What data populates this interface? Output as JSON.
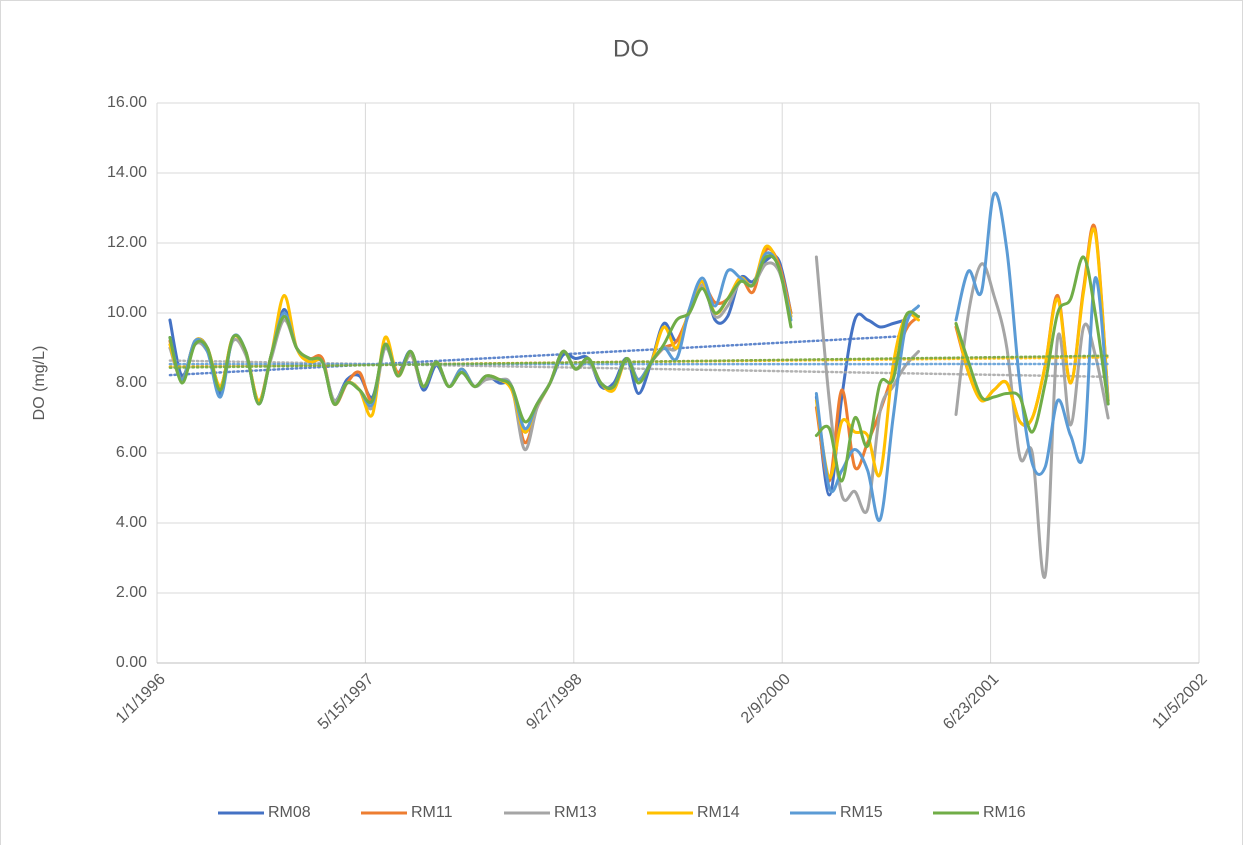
{
  "chart_data": {
    "type": "line",
    "title": "DO",
    "y_label": "DO (mg/L)",
    "x": [
      "1996-02-01",
      "1996-03-01",
      "1996-04-01",
      "1996-05-01",
      "1996-06-01",
      "1996-07-01",
      "1996-08-01",
      "1996-09-01",
      "1996-10-01",
      "1996-11-01",
      "1996-12-01",
      "1997-01-01",
      "1997-02-01",
      "1997-03-01",
      "1997-04-01",
      "1997-05-01",
      "1997-06-01",
      "1997-07-01",
      "1997-08-01",
      "1997-09-01",
      "1997-10-01",
      "1997-11-01",
      "1997-12-01",
      "1998-01-01",
      "1998-02-01",
      "1998-03-01",
      "1998-04-01",
      "1998-05-01",
      "1998-06-01",
      "1998-07-01",
      "1998-08-01",
      "1998-09-01",
      "1998-10-01",
      "1998-11-01",
      "1998-12-01",
      "1999-01-01",
      "1999-02-01",
      "1999-03-01",
      "1999-04-01",
      "1999-05-01",
      "1999-06-01",
      "1999-07-01",
      "1999-08-01",
      "1999-09-01",
      "1999-10-01",
      "1999-11-01",
      "1999-12-01",
      "2000-01-01",
      "2000-02-01",
      "2000-03-01",
      "2000-04-01",
      "2000-05-01",
      "2000-06-01",
      "2000-07-01",
      "2000-08-01",
      "2000-09-01",
      "2000-10-01",
      "2000-11-01",
      "2000-12-01",
      "2001-01-01",
      "2001-02-01",
      "2001-03-01",
      "2001-04-01",
      "2001-05-01",
      "2001-06-01",
      "2001-07-01",
      "2001-08-01",
      "2001-09-01",
      "2001-10-01",
      "2001-11-01",
      "2001-12-01",
      "2002-01-01",
      "2002-02-01",
      "2002-03-01",
      "2002-04-01"
    ],
    "series": [
      {
        "name": "RM08",
        "color": "#4472c4",
        "values": [
          9.8,
          8.2,
          9.2,
          9.0,
          7.7,
          9.3,
          8.9,
          7.4,
          8.8,
          10.1,
          9.0,
          8.7,
          8.6,
          7.5,
          8.1,
          8.2,
          7.6,
          9.0,
          8.3,
          8.9,
          7.8,
          8.5,
          7.9,
          8.3,
          7.9,
          8.2,
          8.0,
          7.9,
          6.6,
          7.4,
          8.0,
          8.8,
          8.7,
          8.7,
          7.9,
          8.0,
          8.7,
          7.7,
          8.6,
          9.7,
          9.2,
          10.0,
          10.9,
          9.8,
          9.9,
          11.0,
          10.9,
          11.5,
          11.5,
          10.0,
          null,
          7.6,
          4.8,
          7.6,
          9.8,
          9.8,
          9.6,
          9.7,
          9.8,
          null,
          null,
          null,
          null,
          null,
          null,
          null,
          null,
          null,
          null,
          null,
          null,
          null,
          null,
          null,
          null
        ]
      },
      {
        "name": "RM11",
        "color": "#ed7d31",
        "values": [
          9.2,
          8.1,
          9.1,
          9.0,
          7.9,
          9.3,
          8.9,
          7.5,
          8.8,
          9.9,
          9.0,
          8.7,
          8.7,
          7.4,
          8.0,
          8.3,
          7.5,
          9.1,
          8.3,
          8.8,
          7.9,
          8.6,
          7.9,
          8.4,
          7.9,
          8.2,
          8.1,
          7.9,
          6.3,
          7.3,
          8.0,
          8.9,
          8.4,
          8.7,
          8.0,
          7.9,
          8.7,
          8.1,
          8.6,
          9.0,
          9.2,
          10.0,
          10.8,
          10.3,
          10.4,
          11.0,
          10.6,
          11.8,
          11.4,
          10.0,
          null,
          7.3,
          5.2,
          7.8,
          5.6,
          6.3,
          7.2,
          8.3,
          9.5,
          9.9,
          null,
          null,
          9.6,
          8.3,
          7.5,
          7.8,
          8.0,
          6.9,
          7.0,
          8.5,
          10.5,
          8.0,
          10.7,
          12.4,
          7.5
        ]
      },
      {
        "name": "RM13",
        "color": "#a5a5a5",
        "values": [
          9.0,
          8.1,
          9.1,
          8.9,
          7.9,
          9.2,
          8.8,
          7.5,
          8.7,
          9.8,
          9.0,
          8.6,
          8.6,
          7.5,
          8.0,
          7.8,
          7.3,
          9.0,
          8.2,
          8.8,
          7.9,
          8.6,
          7.9,
          8.3,
          7.9,
          8.1,
          8.1,
          7.9,
          6.1,
          7.3,
          8.0,
          8.9,
          8.4,
          8.6,
          8.0,
          7.9,
          8.7,
          8.1,
          8.6,
          9.0,
          9.0,
          10.0,
          10.8,
          9.9,
          10.2,
          10.9,
          10.8,
          11.4,
          11.2,
          9.9,
          null,
          11.6,
          7.5,
          4.8,
          4.9,
          4.4,
          7.2,
          7.9,
          8.5,
          8.9,
          null,
          null,
          7.1,
          10.0,
          11.4,
          10.5,
          9.0,
          5.9,
          6.0,
          2.5,
          9.3,
          6.8,
          9.6,
          8.8,
          7.0
        ]
      },
      {
        "name": "RM14",
        "color": "#ffc000",
        "values": [
          9.1,
          8.1,
          9.2,
          9.0,
          7.9,
          9.3,
          8.9,
          7.5,
          8.8,
          10.5,
          9.0,
          8.6,
          8.6,
          7.4,
          8.0,
          7.8,
          7.1,
          9.3,
          8.2,
          8.9,
          7.9,
          8.6,
          7.9,
          8.4,
          7.9,
          8.2,
          8.1,
          7.8,
          6.6,
          7.4,
          8.0,
          8.9,
          8.4,
          8.7,
          8.0,
          7.8,
          8.7,
          8.1,
          8.6,
          9.6,
          9.0,
          10.1,
          10.9,
          10.0,
          10.4,
          11.0,
          10.8,
          11.9,
          11.3,
          9.9,
          null,
          7.5,
          5.3,
          6.9,
          6.6,
          6.5,
          5.4,
          8.5,
          9.9,
          9.8,
          null,
          null,
          9.7,
          8.3,
          7.5,
          7.8,
          8.0,
          6.9,
          7.0,
          8.5,
          10.4,
          8.0,
          10.6,
          12.3,
          7.5
        ]
      },
      {
        "name": "RM15",
        "color": "#5b9bd5",
        "values": [
          9.3,
          8.1,
          9.2,
          8.9,
          7.6,
          9.3,
          8.9,
          7.4,
          8.8,
          10.0,
          9.0,
          8.7,
          8.6,
          7.4,
          8.0,
          7.8,
          7.4,
          9.1,
          8.2,
          8.9,
          7.9,
          8.6,
          7.9,
          8.4,
          7.9,
          8.2,
          8.1,
          7.9,
          6.7,
          7.4,
          8.0,
          8.9,
          8.4,
          8.7,
          8.0,
          7.9,
          8.7,
          8.1,
          8.6,
          9.0,
          8.7,
          10.1,
          11.0,
          10.2,
          11.2,
          11.0,
          10.8,
          11.7,
          11.3,
          9.8,
          null,
          7.7,
          5.0,
          5.5,
          6.1,
          5.5,
          4.1,
          7.0,
          9.6,
          10.2,
          null,
          null,
          9.8,
          11.2,
          10.6,
          13.4,
          11.8,
          8.0,
          5.7,
          5.6,
          7.5,
          6.5,
          6.0,
          11.0,
          7.4
        ]
      },
      {
        "name": "RM16",
        "color": "#70ad47",
        "values": [
          9.3,
          8.0,
          9.1,
          9.0,
          7.8,
          9.3,
          8.9,
          7.4,
          8.8,
          9.9,
          9.0,
          8.7,
          8.6,
          7.4,
          8.0,
          7.8,
          7.5,
          9.1,
          8.2,
          8.9,
          7.9,
          8.6,
          7.9,
          8.3,
          7.9,
          8.2,
          8.1,
          7.9,
          6.9,
          7.4,
          8.0,
          8.9,
          8.4,
          8.7,
          8.0,
          7.9,
          8.7,
          8.0,
          8.6,
          9.1,
          9.8,
          10.0,
          10.7,
          10.0,
          10.4,
          10.9,
          10.8,
          11.6,
          11.3,
          9.6,
          null,
          6.5,
          6.7,
          5.2,
          7.0,
          6.2,
          8.0,
          8.1,
          9.9,
          9.9,
          null,
          null,
          9.7,
          8.6,
          7.6,
          7.6,
          7.7,
          7.6,
          6.6,
          8.0,
          10.0,
          10.4,
          11.6,
          10.0,
          7.4
        ]
      }
    ],
    "xlim": [
      "1996-01-01",
      "2002-11-05"
    ],
    "xticks": [
      {
        "value": "1996-01-01",
        "label": "1/1/1996"
      },
      {
        "value": "1997-05-15",
        "label": "5/15/1997"
      },
      {
        "value": "1998-09-27",
        "label": "9/27/1998"
      },
      {
        "value": "2000-02-09",
        "label": "2/9/2000"
      },
      {
        "value": "2001-06-23",
        "label": "6/23/2001"
      },
      {
        "value": "2002-11-05",
        "label": "11/5/2002"
      }
    ],
    "ylim": [
      0,
      16
    ],
    "yticks": [
      {
        "value": 0,
        "label": "0.00"
      },
      {
        "value": 2,
        "label": "2.00"
      },
      {
        "value": 4,
        "label": "4.00"
      },
      {
        "value": 6,
        "label": "6.00"
      },
      {
        "value": 8,
        "label": "8.00"
      },
      {
        "value": 10,
        "label": "10.00"
      },
      {
        "value": 12,
        "label": "12.00"
      },
      {
        "value": 14,
        "label": "14.00"
      },
      {
        "value": 16,
        "label": "16.00"
      }
    ],
    "grid": true,
    "trendline": true,
    "legend": "bottom"
  }
}
